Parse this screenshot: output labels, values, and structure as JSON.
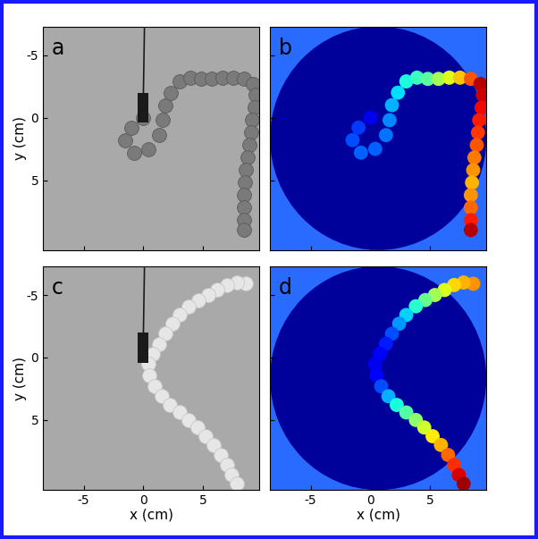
{
  "chart_data": [
    {
      "type": "scatter",
      "title": "a",
      "y_label": "y (cm)",
      "tick_labels": "y",
      "color": "#7a7a7a",
      "x": [
        0,
        -1.0,
        -1.5,
        -0.8,
        0.4,
        1.3,
        1.6,
        1.8,
        2.3,
        3.0,
        3.9,
        4.8,
        5.7,
        6.6,
        7.5,
        8.4,
        9.2,
        9.4,
        9.3,
        9.1,
        9.0,
        8.9,
        8.7,
        8.6,
        8.5,
        8.4,
        8.4,
        8.4,
        8.4
      ],
      "y": [
        0,
        0.8,
        1.8,
        2.8,
        2.5,
        1.4,
        0.2,
        -1.0,
        -2.0,
        -2.9,
        -3.2,
        -3.1,
        -3.1,
        -3.2,
        -3.2,
        -3.1,
        -2.7,
        -1.8,
        -0.8,
        0.2,
        1.2,
        2.2,
        3.2,
        4.2,
        5.2,
        6.2,
        7.2,
        8.2,
        9.0
      ],
      "xlim": [
        -8.4,
        9.7
      ],
      "ylim": [
        10.6,
        -7.3
      ],
      "xticks": [
        -5,
        0,
        5
      ],
      "yticks": [
        -5,
        0,
        5
      ]
    },
    {
      "type": "scatter",
      "title": "b",
      "tick_labels": false,
      "x": [
        0,
        -1.0,
        -1.5,
        -0.8,
        0.4,
        1.3,
        1.6,
        1.8,
        2.3,
        3.0,
        3.9,
        4.8,
        5.7,
        6.6,
        7.5,
        8.4,
        9.2,
        9.4,
        9.3,
        9.1,
        9.0,
        8.9,
        8.7,
        8.6,
        8.5,
        8.4,
        8.4,
        8.4,
        8.4
      ],
      "y": [
        0,
        0.8,
        1.8,
        2.8,
        2.5,
        1.4,
        0.2,
        -1.0,
        -2.0,
        -2.9,
        -3.2,
        -3.1,
        -3.1,
        -3.2,
        -3.2,
        -3.1,
        -2.7,
        -1.8,
        -0.8,
        0.2,
        1.2,
        2.2,
        3.2,
        4.2,
        5.2,
        6.2,
        7.2,
        8.2,
        9.0
      ],
      "color_values": [
        0.1,
        0.18,
        0.2,
        0.22,
        0.22,
        0.24,
        0.26,
        0.3,
        0.34,
        0.38,
        0.42,
        0.46,
        0.55,
        0.62,
        0.7,
        0.82,
        0.95,
        0.93,
        0.9,
        0.88,
        0.85,
        0.82,
        0.78,
        0.75,
        0.72,
        0.75,
        0.8,
        0.88,
        0.95
      ],
      "xlim": [
        -8.4,
        9.7
      ],
      "ylim": [
        10.6,
        -7.3
      ],
      "xticks": [
        -5,
        0,
        5
      ],
      "yticks": [
        -5,
        0,
        5
      ]
    },
    {
      "type": "scatter",
      "title": "c",
      "x_label": "x (cm)",
      "y_label": "y (cm)",
      "color": "#e6e6e6",
      "x": [
        8.6,
        7.8,
        7.0,
        6.2,
        5.4,
        4.6,
        3.8,
        3.0,
        2.4,
        1.8,
        1.3,
        0.8,
        0.4,
        0.5,
        0.9,
        1.5,
        2.2,
        3.0,
        3.8,
        4.5,
        5.2,
        5.9,
        6.5,
        7.0,
        7.4,
        7.8
      ],
      "y": [
        -5.9,
        -6.0,
        -5.8,
        -5.4,
        -5.0,
        -4.6,
        -4.1,
        -3.4,
        -2.7,
        -1.9,
        -1.1,
        -0.3,
        0.5,
        1.4,
        2.3,
        3.1,
        3.8,
        4.4,
        5.0,
        5.6,
        6.3,
        7.0,
        7.8,
        8.6,
        9.4,
        10.1
      ],
      "xlim": [
        -8.4,
        9.7
      ],
      "ylim": [
        10.6,
        -7.3
      ],
      "xticks": [
        -5,
        0,
        5
      ],
      "yticks": [
        -5,
        0,
        5
      ]
    },
    {
      "type": "scatter",
      "title": "d",
      "x_label": "x (cm)",
      "tick_labels": "x",
      "x": [
        8.6,
        7.8,
        7.0,
        6.2,
        5.4,
        4.6,
        3.8,
        3.0,
        2.4,
        1.8,
        1.3,
        0.8,
        0.4,
        0.5,
        0.9,
        1.5,
        2.2,
        3.0,
        3.8,
        4.5,
        5.2,
        5.9,
        6.5,
        7.0,
        7.4,
        7.8
      ],
      "y": [
        -5.9,
        -6.0,
        -5.8,
        -5.4,
        -5.0,
        -4.6,
        -4.1,
        -3.4,
        -2.7,
        -1.9,
        -1.1,
        -0.3,
        0.5,
        1.4,
        2.3,
        3.1,
        3.8,
        4.4,
        5.0,
        5.6,
        6.3,
        7.0,
        7.8,
        8.6,
        9.4,
        10.1
      ],
      "color_values": [
        0.75,
        0.72,
        0.68,
        0.62,
        0.55,
        0.48,
        0.4,
        0.33,
        0.27,
        0.2,
        0.15,
        0.12,
        0.1,
        0.12,
        0.2,
        0.3,
        0.38,
        0.45,
        0.52,
        0.6,
        0.66,
        0.72,
        0.8,
        0.86,
        0.92,
        0.97
      ],
      "xlim": [
        -8.4,
        9.7
      ],
      "ylim": [
        10.6,
        -7.3
      ],
      "xticks": [
        -5,
        0,
        5
      ],
      "yticks": [
        -5,
        0,
        5
      ]
    }
  ]
}
